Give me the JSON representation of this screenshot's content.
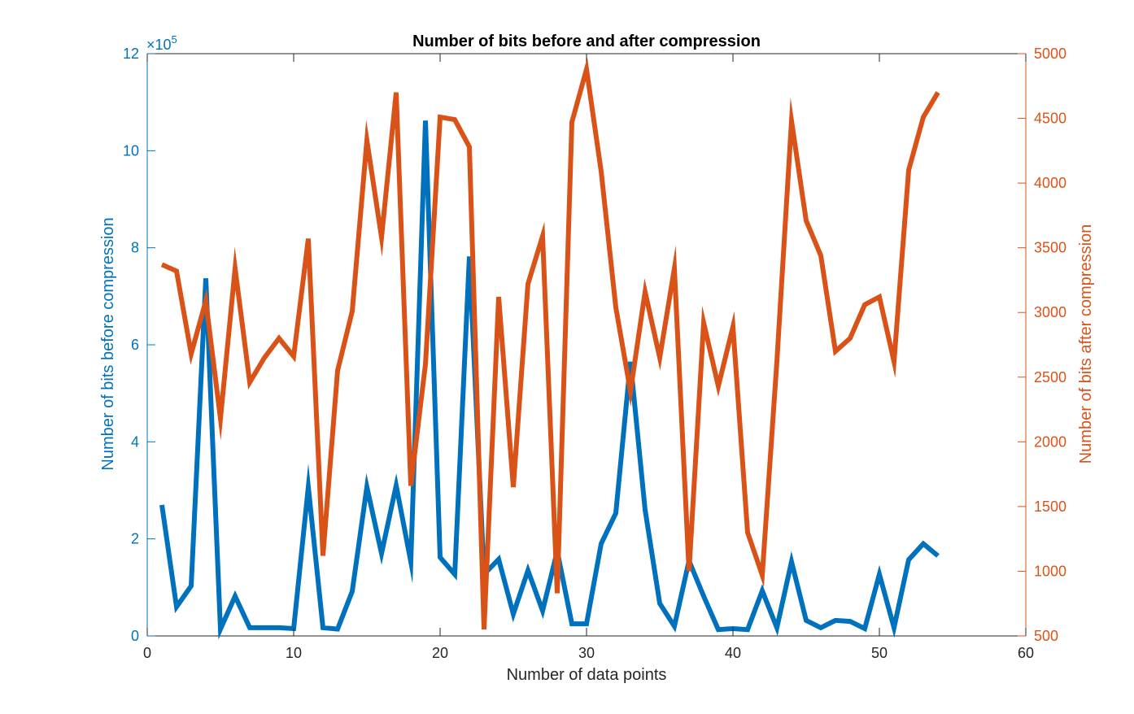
{
  "chart_data": {
    "type": "line",
    "title": "Number of bits before and after compression",
    "xlabel": "Number of data points",
    "ylabel_left": "Number of bits before compression",
    "ylabel_right": "Number of bits after compression",
    "left_axis_exponent": "×10",
    "left_axis_exponent_power": "5",
    "xlim": [
      0,
      60
    ],
    "ylim_left": [
      0,
      1200000
    ],
    "ylim_right": [
      500,
      5000
    ],
    "x_ticks": [
      0,
      10,
      20,
      30,
      40,
      50,
      60
    ],
    "y_left_ticks": [
      0,
      2,
      4,
      6,
      8,
      10,
      12
    ],
    "y_left_tick_scale": 100000,
    "y_right_ticks": [
      500,
      1000,
      1500,
      2000,
      2500,
      3000,
      3500,
      4000,
      4500,
      5000
    ],
    "grid": false,
    "colors": {
      "left": "#0072BD",
      "right": "#D95319",
      "axis": "#262626"
    },
    "series": [
      {
        "axis": "left",
        "x": [
          1,
          2,
          3,
          4,
          5,
          6,
          7,
          8,
          9,
          10,
          11,
          12,
          13,
          14,
          15,
          16,
          17,
          18,
          19,
          20,
          21,
          22,
          23,
          24,
          25,
          26,
          27,
          28,
          29,
          30,
          31,
          32,
          33,
          34,
          35,
          36,
          37,
          38,
          39,
          40,
          41,
          42,
          43,
          44,
          45,
          46,
          47,
          48,
          49,
          50,
          51,
          52,
          53,
          54
        ],
        "values": [
          270000,
          60000,
          103000,
          737000,
          14000,
          82000,
          17000,
          17000,
          17000,
          15000,
          307000,
          17000,
          14000,
          92000,
          307000,
          170000,
          310000,
          153000,
          1062000,
          162000,
          127000,
          782000,
          127000,
          158000,
          45000,
          135000,
          52000,
          175000,
          25000,
          25000,
          190000,
          253000,
          565000,
          260000,
          67000,
          20000,
          155000,
          82000,
          13000,
          15000,
          13000,
          93000,
          17000,
          153000,
          32000,
          17000,
          32000,
          30000,
          15000,
          127000,
          17000,
          157000,
          190000,
          165000
        ]
      },
      {
        "axis": "right",
        "x": [
          1,
          2,
          3,
          4,
          5,
          6,
          7,
          8,
          9,
          10,
          11,
          12,
          13,
          14,
          15,
          16,
          17,
          18,
          19,
          20,
          21,
          22,
          23,
          24,
          25,
          26,
          27,
          28,
          29,
          30,
          31,
          32,
          33,
          34,
          35,
          36,
          37,
          38,
          39,
          40,
          41,
          42,
          43,
          44,
          45,
          46,
          47,
          48,
          49,
          50,
          51,
          52,
          53,
          54
        ],
        "values": [
          3370,
          3320,
          2680,
          3090,
          2180,
          3340,
          2460,
          2650,
          2800,
          2660,
          3570,
          1120,
          2550,
          3010,
          4330,
          3580,
          4700,
          1660,
          2600,
          4510,
          4490,
          4280,
          550,
          3120,
          1650,
          3220,
          3590,
          830,
          4470,
          4880,
          4090,
          3040,
          2390,
          3160,
          2650,
          3340,
          1000,
          2920,
          2430,
          2890,
          1300,
          970,
          2620,
          4480,
          3710,
          3440,
          2700,
          2800,
          3060,
          3120,
          2620,
          4100,
          4510,
          4700
        ]
      }
    ]
  }
}
